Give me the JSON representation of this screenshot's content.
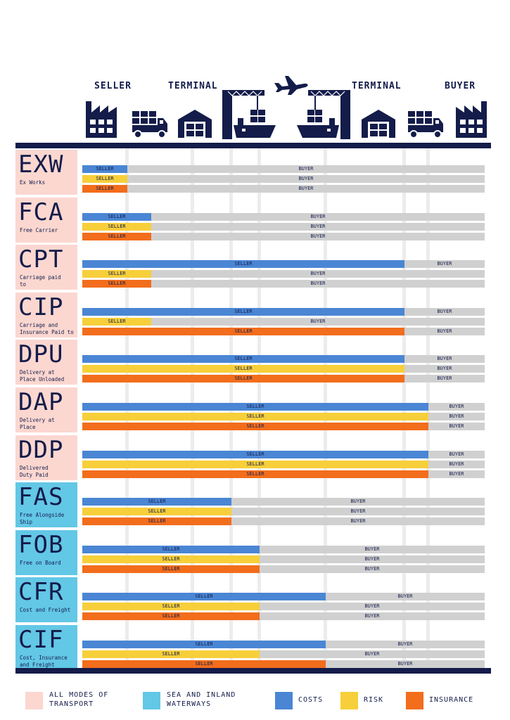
{
  "header": {
    "columns": [
      "SELLER",
      "TERMINAL",
      "TERMINAL",
      "BUYER"
    ],
    "icons": [
      "factory-icon",
      "truck-icon",
      "warehouse-icon",
      "crane-ship-icon",
      "plane-icon",
      "crane-ship-icon",
      "warehouse-icon",
      "truck-icon",
      "factory-icon"
    ]
  },
  "terms": [
    {
      "code": "EXW",
      "name": "Ex Works",
      "group": "all",
      "rows": [
        {
          "kind": "costs",
          "seller_to": 1,
          "seller": "SELLER",
          "buyer": "BUYER"
        },
        {
          "kind": "risk",
          "seller_to": 1,
          "seller": "SELLER",
          "buyer": "BUYER"
        },
        {
          "kind": "insurance",
          "seller_to": 1,
          "seller": "SELLER",
          "buyer": "BUYER"
        }
      ]
    },
    {
      "code": "FCA",
      "name": "Free Carrier",
      "group": "all",
      "rows": [
        {
          "kind": "costs",
          "seller_to": 2,
          "seller": "SELLER",
          "buyer": "BUYER"
        },
        {
          "kind": "risk",
          "seller_to": 2,
          "seller": "SELLER",
          "buyer": "BUYER"
        },
        {
          "kind": "insurance",
          "seller_to": 2,
          "seller": "SELLER",
          "buyer": "BUYER"
        }
      ]
    },
    {
      "code": "CPT",
      "name": "Carriage paid\nto",
      "group": "all",
      "rows": [
        {
          "kind": "costs",
          "seller_to": 7,
          "seller": "SELLER",
          "buyer": "BUYER"
        },
        {
          "kind": "risk",
          "seller_to": 2,
          "seller": "SELLER",
          "buyer": "BUYER"
        },
        {
          "kind": "insurance",
          "seller_to": 2,
          "seller": "SELLER",
          "buyer": "BUYER"
        }
      ]
    },
    {
      "code": "CIP",
      "name": "Carriage and\nInsurance Paid to",
      "group": "all",
      "rows": [
        {
          "kind": "costs",
          "seller_to": 7,
          "seller": "SELLER",
          "buyer": "BUYER"
        },
        {
          "kind": "risk",
          "seller_to": 2,
          "seller": "SELLER",
          "buyer": "BUYER"
        },
        {
          "kind": "insurance",
          "seller_to": 7,
          "seller": "SELLER",
          "buyer": "BUYER"
        }
      ]
    },
    {
      "code": "DPU",
      "name": "Delivery at\nPlace Unloaded",
      "group": "all",
      "rows": [
        {
          "kind": "costs",
          "seller_to": 7,
          "seller": "SELLER",
          "buyer": "BUYER"
        },
        {
          "kind": "risk",
          "seller_to": 7,
          "seller": "SELLER",
          "buyer": "BUYER"
        },
        {
          "kind": "insurance",
          "seller_to": 7,
          "seller": "SELLER",
          "buyer": "BUYER"
        }
      ]
    },
    {
      "code": "DAP",
      "name": "Delivery at\nPlace",
      "group": "all",
      "rows": [
        {
          "kind": "costs",
          "seller_to": 8,
          "seller": "SELLER",
          "buyer": "BUYER"
        },
        {
          "kind": "risk",
          "seller_to": 8,
          "seller": "SELLER",
          "buyer": "BUYER"
        },
        {
          "kind": "insurance",
          "seller_to": 8,
          "seller": "SELLER",
          "buyer": "BUYER"
        }
      ]
    },
    {
      "code": "DDP",
      "name": "Delivered\nDuty Paid",
      "group": "all",
      "rows": [
        {
          "kind": "costs",
          "seller_to": 8,
          "seller": "SELLER",
          "buyer": "BUYER"
        },
        {
          "kind": "risk",
          "seller_to": 8,
          "seller": "SELLER",
          "buyer": "BUYER"
        },
        {
          "kind": "insurance",
          "seller_to": 8,
          "seller": "SELLER",
          "buyer": "BUYER"
        }
      ]
    },
    {
      "code": "FAS",
      "name": "Free Alongside\nShip",
      "group": "sea",
      "rows": [
        {
          "kind": "costs",
          "seller_to": 4,
          "seller": "SELLER",
          "buyer": "BUYER"
        },
        {
          "kind": "risk",
          "seller_to": 4,
          "seller": "SELLER",
          "buyer": "BUYER"
        },
        {
          "kind": "insurance",
          "seller_to": 4,
          "seller": "SELLER",
          "buyer": "BUYER"
        }
      ]
    },
    {
      "code": "FOB",
      "name": "Free on Board",
      "group": "sea",
      "rows": [
        {
          "kind": "costs",
          "seller_to": 5,
          "seller": "SELLER",
          "buyer": "BUYER"
        },
        {
          "kind": "risk",
          "seller_to": 5,
          "seller": "SELLER",
          "buyer": "BUYER"
        },
        {
          "kind": "insurance",
          "seller_to": 5,
          "seller": "SELLER",
          "buyer": "BUYER"
        }
      ]
    },
    {
      "code": "CFR",
      "name": "Cost and Freight",
      "group": "sea",
      "rows": [
        {
          "kind": "costs",
          "seller_to": 6,
          "seller": "SELLER",
          "buyer": "BUYER"
        },
        {
          "kind": "risk",
          "seller_to": 5,
          "seller": "SELLER",
          "buyer": "BUYER"
        },
        {
          "kind": "insurance",
          "seller_to": 5,
          "seller": "SELLER",
          "buyer": "BUYER"
        }
      ]
    },
    {
      "code": "CIF",
      "name": "Cost, Insurance\nand Freight",
      "group": "sea",
      "rows": [
        {
          "kind": "costs",
          "seller_to": 6,
          "seller": "SELLER",
          "buyer": "BUYER"
        },
        {
          "kind": "risk",
          "seller_to": 5,
          "seller": "SELLER",
          "buyer": "BUYER"
        },
        {
          "kind": "insurance",
          "seller_to": 6,
          "seller": "SELLER",
          "buyer": "BUYER"
        }
      ]
    }
  ],
  "legend": {
    "all_modes": "ALL MODES OF\nTRANSPORT",
    "sea": "SEA AND INLAND\nWATERWAYS",
    "costs": "COSTS",
    "risk": "RISK",
    "insurance": "INSURANCE"
  },
  "colors": {
    "navy": "#141c4a",
    "all_modes": "#fbd7d0",
    "sea": "#63c7e6",
    "costs": "#4a86d4",
    "risk": "#f7cf3a",
    "insurance": "#f26d1c",
    "buyer": "#d0d0d0"
  }
}
